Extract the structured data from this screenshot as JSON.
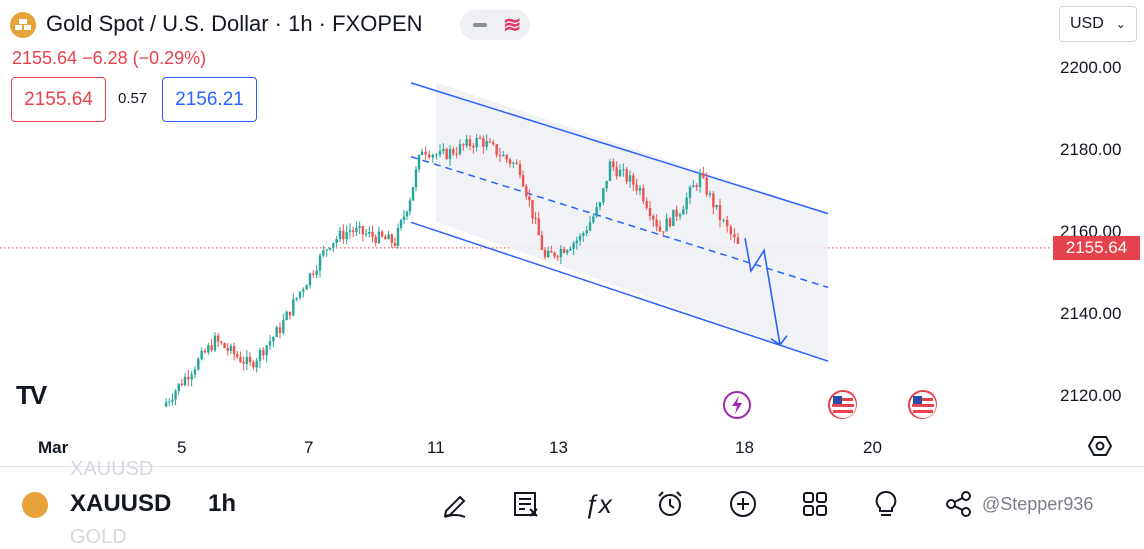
{
  "header": {
    "title": "Gold Spot / U.S. Dollar · 1h · FXOPEN",
    "price_change": "2155.64  −6.28 (−0.29%)",
    "sell_price": "2155.64",
    "spread": "0.57",
    "buy_price": "2156.21",
    "currency": "USD"
  },
  "price_axis": {
    "labels": [
      "2200.00",
      "2180.00",
      "2160.00",
      "2140.00",
      "2120.00"
    ],
    "current_price_tag": "2155.64"
  },
  "time_axis": {
    "labels": [
      "Mar",
      "5",
      "7",
      "11",
      "13",
      "18",
      "20"
    ]
  },
  "brand": {
    "logo_text": "TV"
  },
  "bottom_bar": {
    "ghost_top": "XAUUSD",
    "symbol": "XAUUSD",
    "timeframe": "1h",
    "ghost_bottom": "GOLD",
    "watermark": "@Stepper936",
    "icons": [
      "draw-icon",
      "indicator-list-icon",
      "fx-icon",
      "alarm-icon",
      "plus-icon",
      "layout-grid-icon",
      "idea-bulb-icon",
      "share-icon"
    ]
  },
  "colors": {
    "up": "#26a69a",
    "down": "#ef5350",
    "channel": "#2962ff",
    "price_line": "#e5424d",
    "accent": "#e23a6a"
  },
  "chart_data": {
    "type": "candlestick",
    "symbol": "XAUUSD",
    "timeframe": "1h",
    "current_price": 2155.64,
    "ylim": [
      2113,
      2207
    ],
    "x_ticks": [
      "Mar",
      "5",
      "7",
      "11",
      "13",
      "18",
      "20"
    ],
    "price_path": [
      {
        "x": "5",
        "close": 2117
      },
      {
        "x": "5",
        "close": 2124
      },
      {
        "x": "6",
        "close": 2133
      },
      {
        "x": "6",
        "close": 2127
      },
      {
        "x": "7",
        "close": 2136
      },
      {
        "x": "7",
        "close": 2145
      },
      {
        "x": "8",
        "close": 2157
      },
      {
        "x": "8",
        "close": 2160
      },
      {
        "x": "8",
        "close": 2157
      },
      {
        "x": "11",
        "close": 2168
      },
      {
        "x": "11",
        "close": 2180
      },
      {
        "x": "11",
        "close": 2178
      },
      {
        "x": "12",
        "close": 2182
      },
      {
        "x": "12",
        "close": 2175
      },
      {
        "x": "13",
        "close": 2153
      },
      {
        "x": "13",
        "close": 2158
      },
      {
        "x": "14",
        "close": 2166
      },
      {
        "x": "14",
        "close": 2176
      },
      {
        "x": "15",
        "close": 2170
      },
      {
        "x": "15",
        "close": 2160
      },
      {
        "x": "15",
        "close": 2165
      },
      {
        "x": "18",
        "close": 2173
      },
      {
        "x": "18",
        "close": 2163
      },
      {
        "x": "18",
        "close": 2156
      }
    ],
    "channel": {
      "upper": [
        {
          "x": "11",
          "y": 2196
        },
        {
          "x": "20",
          "y": 2164
        }
      ],
      "lower": [
        {
          "x": "11",
          "y": 2162
        },
        {
          "x": "20",
          "y": 2128
        }
      ],
      "mid": [
        {
          "x": "11",
          "y": 2178
        },
        {
          "x": "20",
          "y": 2146
        }
      ]
    },
    "projection": [
      2158,
      2150,
      2155,
      2132
    ]
  }
}
